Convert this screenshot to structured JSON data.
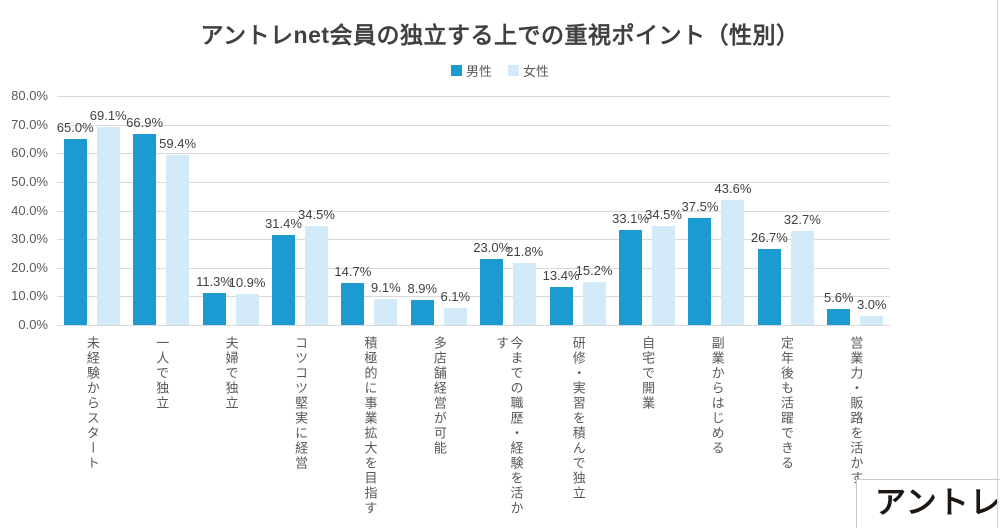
{
  "chart_data": {
    "type": "bar",
    "title": "アントレnet会員の独立する上での重視ポイント（性別）",
    "categories": [
      "未経験からスタート",
      "一人で独立",
      "夫婦で独立",
      "コツコツ堅実に経営",
      "積極的に事業拡大を目指す",
      "多店舗経営が可能",
      "今までの職歴・経験を活かす",
      "研修・実習を積んで独立",
      "自宅で開業",
      "副業からはじめる",
      "定年後も活躍できる",
      "営業力・販路を活かす"
    ],
    "series": [
      {
        "name": "男性",
        "color": "#1c9bd2",
        "values": [
          65.0,
          66.9,
          11.3,
          31.4,
          14.7,
          8.9,
          23.0,
          13.4,
          33.1,
          37.5,
          26.7,
          5.6
        ]
      },
      {
        "name": "女性",
        "color": "#d3ebf8",
        "values": [
          69.1,
          59.4,
          10.9,
          34.5,
          9.1,
          6.1,
          21.8,
          15.2,
          34.5,
          43.6,
          32.7,
          3.0
        ]
      }
    ],
    "yticks": [
      "0.0%",
      "10.0%",
      "20.0%",
      "30.0%",
      "40.0%",
      "50.0%",
      "60.0%",
      "70.0%",
      "80.0%"
    ],
    "ylim": [
      0,
      80
    ],
    "ytick_step": 10,
    "value_label_format": "one_decimal_percent",
    "grid": true,
    "legend_position": "top"
  },
  "logo": {
    "text": "アントレ"
  },
  "colors": {
    "title_text": "#404040",
    "axis_text": "#595959",
    "value_label_text": "#404040",
    "gridline": "#d9d9d9",
    "male_bar": "#1c9bd2",
    "female_bar": "#d3ebf8"
  }
}
